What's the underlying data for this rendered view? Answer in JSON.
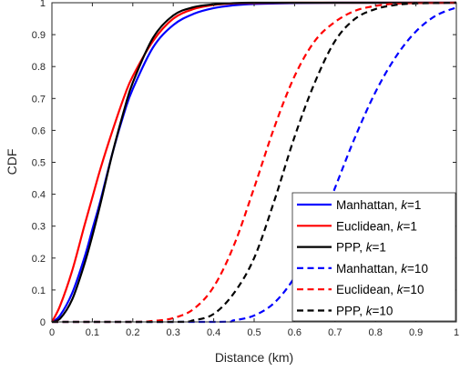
{
  "chart_data": {
    "type": "line",
    "title": "",
    "xlabel": "Distance (km)",
    "ylabel": "CDF",
    "xlim": [
      0,
      1
    ],
    "ylim": [
      0,
      1
    ],
    "grid": false,
    "legend_position": "lower-right",
    "xticks": [
      "0",
      "0.1",
      "0.2",
      "0.3",
      "0.4",
      "0.5",
      "0.6",
      "0.7",
      "0.8",
      "0.9",
      "1"
    ],
    "yticks": [
      "0",
      "0.1",
      "0.2",
      "0.3",
      "0.4",
      "0.5",
      "0.6",
      "0.7",
      "0.8",
      "0.9",
      "1"
    ],
    "series": [
      {
        "name": "Manhattan, k=1",
        "label_main": "Manhattan, ",
        "label_italic": "k",
        "label_tail": "=1",
        "color": "#0000ff",
        "dash": "solid",
        "x": [
          0,
          0.02,
          0.05,
          0.08,
          0.1,
          0.12,
          0.15,
          0.18,
          0.2,
          0.25,
          0.3,
          0.35,
          0.4,
          0.45,
          0.5,
          0.6,
          0.7,
          0.8,
          1.0
        ],
        "y": [
          0,
          0.02,
          0.09,
          0.2,
          0.29,
          0.38,
          0.53,
          0.66,
          0.73,
          0.86,
          0.93,
          0.965,
          0.983,
          0.992,
          0.996,
          0.999,
          1.0,
          1.0,
          1.0
        ]
      },
      {
        "name": "Euclidean, k=1",
        "label_main": "Euclidean, ",
        "label_italic": "k",
        "label_tail": "=1",
        "color": "#ff0000",
        "dash": "solid",
        "x": [
          0,
          0.02,
          0.05,
          0.08,
          0.1,
          0.12,
          0.15,
          0.18,
          0.2,
          0.25,
          0.3,
          0.35,
          0.4,
          0.45,
          0.5,
          0.6,
          1.0
        ],
        "y": [
          0,
          0.05,
          0.16,
          0.3,
          0.39,
          0.48,
          0.6,
          0.71,
          0.77,
          0.88,
          0.95,
          0.98,
          0.993,
          0.998,
          0.999,
          1.0,
          1.0
        ]
      },
      {
        "name": "PPP, k=1",
        "label_main": "PPP, ",
        "label_italic": "k",
        "label_tail": "=1",
        "color": "#000000",
        "dash": "solid",
        "x": [
          0,
          0.02,
          0.05,
          0.08,
          0.1,
          0.12,
          0.15,
          0.18,
          0.2,
          0.25,
          0.3,
          0.35,
          0.4,
          0.45,
          0.5,
          0.6,
          1.0
        ],
        "y": [
          0,
          0.01,
          0.07,
          0.18,
          0.27,
          0.37,
          0.53,
          0.67,
          0.75,
          0.89,
          0.96,
          0.986,
          0.995,
          0.999,
          1.0,
          1.0,
          1.0
        ]
      },
      {
        "name": "Manhattan, k=10",
        "label_main": "Manhattan, ",
        "label_italic": "k",
        "label_tail": "=10",
        "color": "#0000ff",
        "dash": "dashed",
        "x": [
          0,
          0.4,
          0.45,
          0.5,
          0.55,
          0.6,
          0.65,
          0.7,
          0.75,
          0.8,
          0.85,
          0.9,
          0.95,
          1.0
        ],
        "y": [
          0,
          0.0,
          0.005,
          0.02,
          0.06,
          0.14,
          0.26,
          0.42,
          0.58,
          0.72,
          0.83,
          0.91,
          0.96,
          0.985
        ]
      },
      {
        "name": "Euclidean, k=10",
        "label_main": "Euclidean, ",
        "label_italic": "k",
        "label_tail": "=10",
        "color": "#ff0000",
        "dash": "dashed",
        "x": [
          0,
          0.2,
          0.25,
          0.3,
          0.35,
          0.4,
          0.45,
          0.5,
          0.55,
          0.6,
          0.65,
          0.7,
          0.75,
          0.8,
          0.85,
          0.9,
          1.0
        ],
        "y": [
          0,
          0.0,
          0.003,
          0.012,
          0.04,
          0.11,
          0.24,
          0.42,
          0.61,
          0.77,
          0.88,
          0.94,
          0.975,
          0.99,
          0.997,
          0.999,
          1.0
        ]
      },
      {
        "name": "PPP, k=10",
        "label_main": "PPP, ",
        "label_italic": "k",
        "label_tail": "=10",
        "color": "#000000",
        "dash": "dashed",
        "x": [
          0,
          0.3,
          0.35,
          0.4,
          0.45,
          0.5,
          0.55,
          0.6,
          0.65,
          0.7,
          0.75,
          0.8,
          0.85,
          0.9,
          1.0
        ],
        "y": [
          0,
          0.0,
          0.005,
          0.025,
          0.09,
          0.2,
          0.38,
          0.58,
          0.75,
          0.88,
          0.95,
          0.98,
          0.993,
          0.998,
          1.0
        ]
      }
    ]
  }
}
